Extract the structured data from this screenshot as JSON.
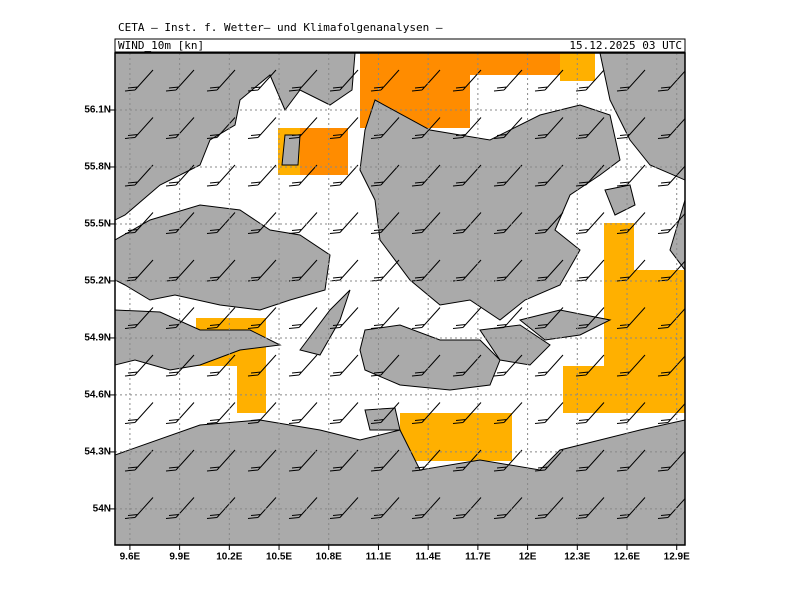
{
  "header": {
    "title": "CETA – Inst. f. Wetter– und Klimafolgenanalysen –"
  },
  "map": {
    "field": "WIND_10m [kn]",
    "valid_time": "15.12.2025 03 UTC",
    "lon_range": [
      9.51,
      12.95
    ],
    "lat_range": [
      53.81,
      56.4
    ],
    "lon_ticks": [
      {
        "value": 9.6,
        "label": "9.6E"
      },
      {
        "value": 9.9,
        "label": "9.9E"
      },
      {
        "value": 10.2,
        "label": "10.2E"
      },
      {
        "value": 10.5,
        "label": "10.5E"
      },
      {
        "value": 10.8,
        "label": "10.8E"
      },
      {
        "value": 11.1,
        "label": "11.1E"
      },
      {
        "value": 11.4,
        "label": "11.4E"
      },
      {
        "value": 11.7,
        "label": "11.7E"
      },
      {
        "value": 12,
        "label": "12E"
      },
      {
        "value": 12.3,
        "label": "12.3E"
      },
      {
        "value": 12.6,
        "label": "12.6E"
      },
      {
        "value": 12.9,
        "label": "12.9E"
      }
    ],
    "lat_ticks": [
      {
        "value": 54,
        "label": "54N"
      },
      {
        "value": 54.3,
        "label": "54.3N"
      },
      {
        "value": 54.6,
        "label": "54.6N"
      },
      {
        "value": 54.9,
        "label": "54.9N"
      },
      {
        "value": 55.2,
        "label": "55.2N"
      },
      {
        "value": 55.5,
        "label": "55.5N"
      },
      {
        "value": 55.8,
        "label": "55.8N"
      },
      {
        "value": 56.1,
        "label": "56.1N"
      }
    ]
  }
}
